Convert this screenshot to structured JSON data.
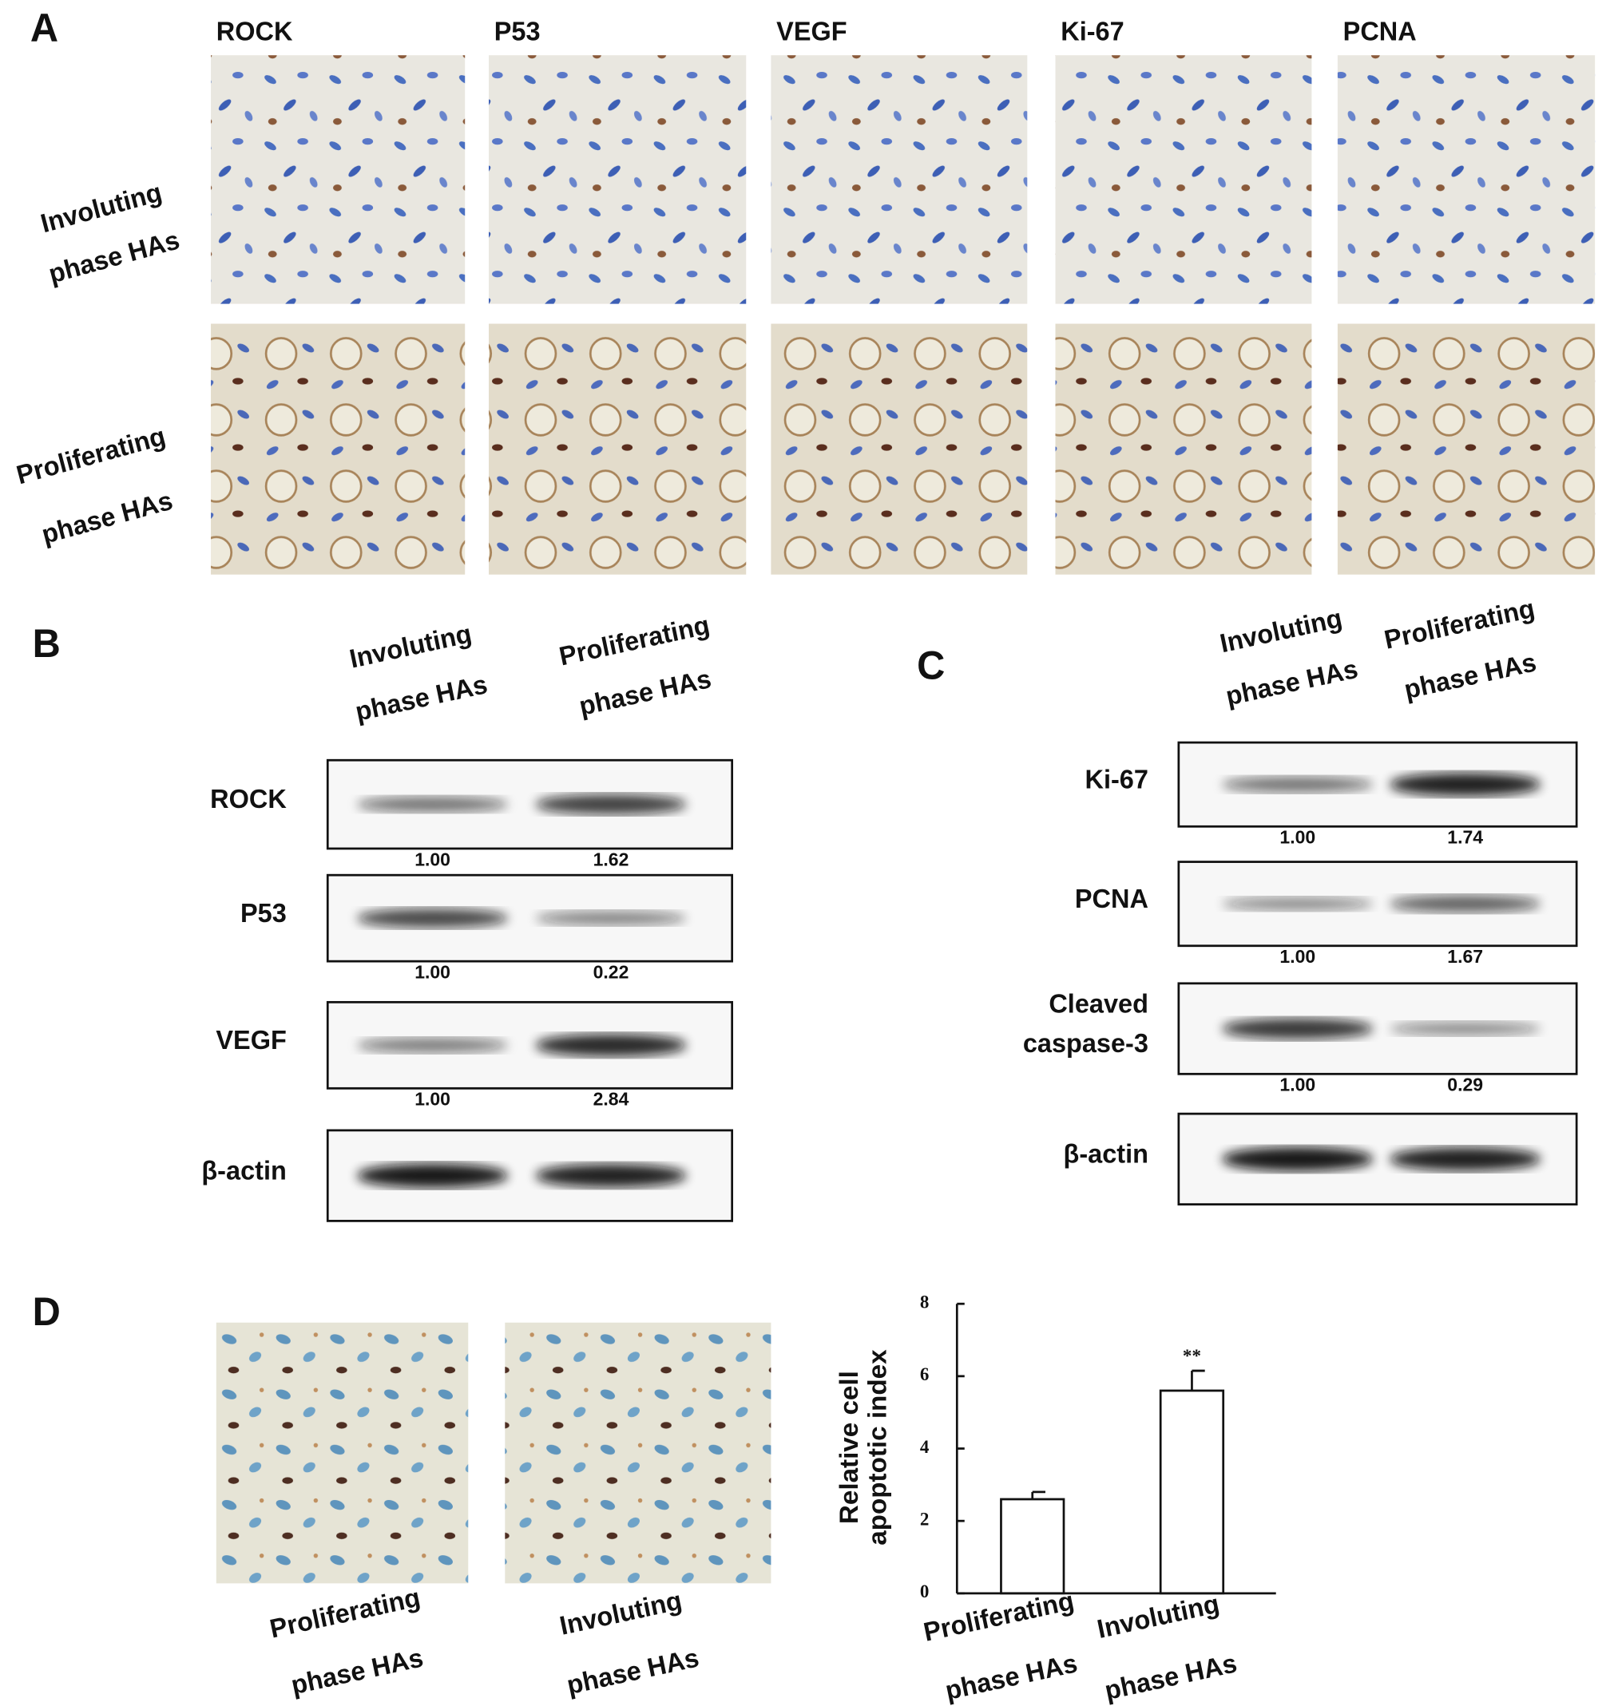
{
  "panels": {
    "A": {
      "label": "A",
      "markers": [
        "ROCK",
        "P53",
        "VEGF",
        "Ki-67",
        "PCNA"
      ],
      "rows": [
        [
          "Involuting",
          "phase HAs"
        ],
        [
          "Proliferating",
          "phase HAs"
        ]
      ]
    },
    "B": {
      "label": "B",
      "columns": [
        [
          "Involuting",
          "phase HAs"
        ],
        [
          "Proliferating",
          "phase HAs"
        ]
      ],
      "blots": [
        {
          "name": [
            "ROCK"
          ],
          "ratios": [
            "1.00",
            "1.62"
          ]
        },
        {
          "name": [
            "P53"
          ],
          "ratios": [
            "1.00",
            "0.22"
          ]
        },
        {
          "name": [
            "VEGF"
          ],
          "ratios": [
            "1.00",
            "2.84"
          ]
        },
        {
          "name": [
            "β-actin"
          ]
        }
      ]
    },
    "C": {
      "label": "C",
      "columns": [
        [
          "Involuting",
          "phase HAs"
        ],
        [
          "Proliferating",
          "phase HAs"
        ]
      ],
      "blots": [
        {
          "name": [
            "Ki-67"
          ],
          "ratios": [
            "1.00",
            "1.74"
          ]
        },
        {
          "name": [
            "PCNA"
          ],
          "ratios": [
            "1.00",
            "1.67"
          ]
        },
        {
          "name": [
            "Cleaved",
            "caspase-3"
          ],
          "ratios": [
            "1.00",
            "0.29"
          ]
        },
        {
          "name": [
            "β-actin"
          ]
        }
      ]
    },
    "D": {
      "label": "D",
      "captions": [
        [
          "Proliferating",
          "phase HAs"
        ],
        [
          "Involuting",
          "phase HAs"
        ]
      ]
    }
  },
  "chart_data": {
    "type": "bar",
    "ylabel": [
      "Relative cell",
      "apoptotic index"
    ],
    "categories": [
      [
        "Proliferating",
        "phase HAs"
      ],
      [
        "Involuting",
        "phase HAs"
      ]
    ],
    "values": [
      2.6,
      5.6
    ],
    "errors": [
      0.2,
      0.55
    ],
    "value_labels": [
      null,
      "**"
    ],
    "color": "#ffffff",
    "ylim": [
      0,
      8
    ],
    "yticks": [
      0,
      2,
      4,
      6,
      8
    ]
  }
}
